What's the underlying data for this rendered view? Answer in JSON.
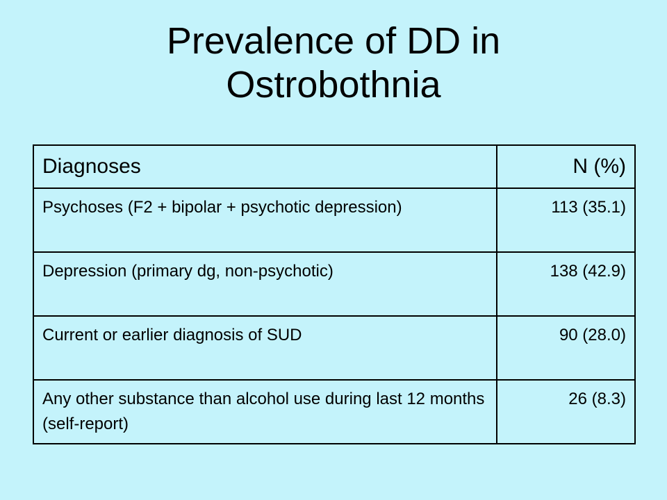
{
  "slide": {
    "title_line1": "Prevalence of DD in",
    "title_line2": "Ostrobothnia"
  },
  "table": {
    "headers": [
      "Diagnoses",
      "N (%)"
    ],
    "rows": [
      {
        "diagnosis": "Psychoses (F2 + bipolar + psychotic depression)",
        "value": "113 (35.1)"
      },
      {
        "diagnosis": "Depression (primary dg, non-psychotic)",
        "value": "138 (42.9)"
      },
      {
        "diagnosis": "Current or earlier diagnosis of SUD",
        "value": "90 (28.0)"
      },
      {
        "diagnosis": "Any other substance than alcohol use during last 12 months (self-report)",
        "value": "26 (8.3)"
      }
    ]
  }
}
